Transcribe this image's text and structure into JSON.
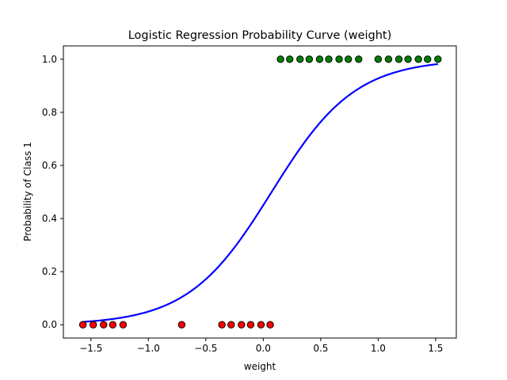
{
  "chart_data": {
    "type": "scatter",
    "title": "Logistic Regression Probability Curve (weight)",
    "xlabel": "weight",
    "ylabel": "Probability of Class 1",
    "xlim": [
      -1.74,
      1.68
    ],
    "ylim": [
      -0.05,
      1.05
    ],
    "xticks": [
      -1.5,
      -1.0,
      -0.5,
      0.0,
      0.5,
      1.0,
      1.5
    ],
    "xtick_labels": [
      "−1.5",
      "−1.0",
      "−0.5",
      "0.0",
      "0.5",
      "1.0",
      "1.5"
    ],
    "yticks": [
      0.0,
      0.2,
      0.4,
      0.6,
      0.8,
      1.0
    ],
    "ytick_labels": [
      "0.0",
      "0.2",
      "0.4",
      "0.6",
      "0.8",
      "1.0"
    ],
    "grid": false,
    "colors": {
      "curve": "#0000ff",
      "class0": "#ff0000",
      "class1": "#008000",
      "marker_edge": "#000000",
      "axes": "#000000"
    },
    "curve": {
      "x_min": -1.57,
      "x_max": 1.52,
      "intercept": -0.2,
      "slope": 2.75
    },
    "class0_points": {
      "x": [
        -1.57,
        -1.48,
        -1.39,
        -1.31,
        -1.22,
        -0.71,
        -0.36,
        -0.28,
        -0.19,
        -0.11,
        -0.02,
        0.06
      ],
      "y": [
        0,
        0,
        0,
        0,
        0,
        0,
        0,
        0,
        0,
        0,
        0,
        0
      ]
    },
    "class1_points": {
      "x": [
        0.15,
        0.23,
        0.32,
        0.4,
        0.49,
        0.57,
        0.66,
        0.74,
        0.83,
        1.0,
        1.09,
        1.18,
        1.26,
        1.35,
        1.43,
        1.52
      ],
      "y": [
        1,
        1,
        1,
        1,
        1,
        1,
        1,
        1,
        1,
        1,
        1,
        1,
        1,
        1,
        1,
        1
      ]
    }
  }
}
